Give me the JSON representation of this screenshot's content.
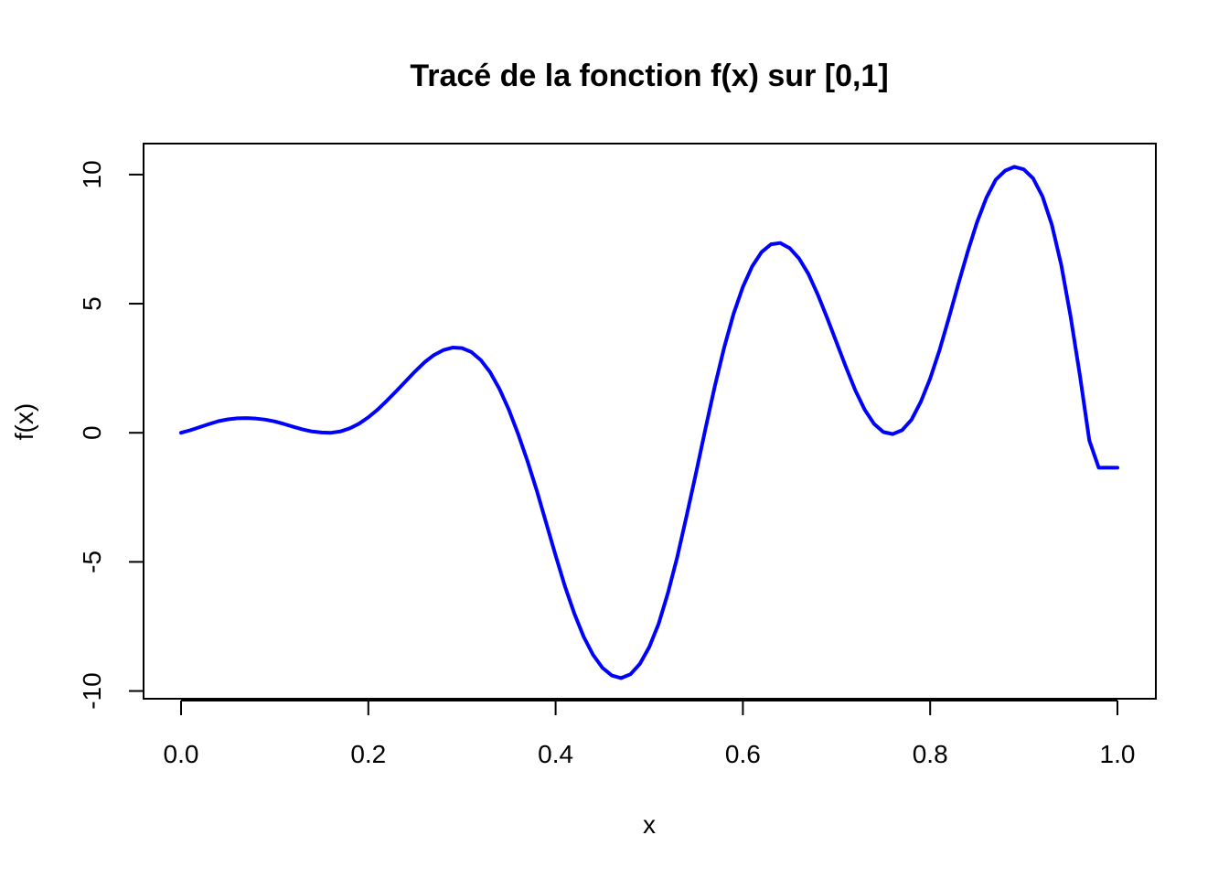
{
  "chart_data": {
    "type": "line",
    "title": "Tracé de la fonction f(x) sur [0,1]",
    "xlabel": "x",
    "ylabel": "f(x)",
    "xlim": [
      0,
      1
    ],
    "ylim": [
      -10.3,
      11.2
    ],
    "x_ticks": [
      0.0,
      0.2,
      0.4,
      0.6,
      0.8,
      1.0
    ],
    "x_tick_labels": [
      "0.0",
      "0.2",
      "0.4",
      "0.6",
      "0.8",
      "1.0"
    ],
    "y_ticks": [
      -10,
      -5,
      0,
      5,
      10
    ],
    "y_tick_labels": [
      "-10",
      "-5",
      "0",
      "5",
      "10"
    ],
    "grid": false,
    "legend": "none",
    "line_color": "#0000ff",
    "series": [
      {
        "x": [
          0.0,
          0.01,
          0.02,
          0.03,
          0.04,
          0.05,
          0.06,
          0.07,
          0.08,
          0.09,
          0.1,
          0.11,
          0.12,
          0.13,
          0.14,
          0.15,
          0.16,
          0.17,
          0.18,
          0.19,
          0.2,
          0.21,
          0.22,
          0.23,
          0.24,
          0.25,
          0.26,
          0.27,
          0.28,
          0.29,
          0.3,
          0.31,
          0.32,
          0.33,
          0.34,
          0.35,
          0.36,
          0.37,
          0.38,
          0.39,
          0.4,
          0.41,
          0.42,
          0.43,
          0.44,
          0.45,
          0.46,
          0.47,
          0.48,
          0.49,
          0.5,
          0.51,
          0.52,
          0.53,
          0.54,
          0.55,
          0.56,
          0.57,
          0.58,
          0.59,
          0.6,
          0.61,
          0.62,
          0.63,
          0.64,
          0.65,
          0.66,
          0.67,
          0.68,
          0.69,
          0.7,
          0.71,
          0.72,
          0.73,
          0.74,
          0.75,
          0.76,
          0.77,
          0.78,
          0.79,
          0.8,
          0.81,
          0.82,
          0.83,
          0.84,
          0.85,
          0.86,
          0.87,
          0.88,
          0.89,
          0.9,
          0.91,
          0.92,
          0.93,
          0.94,
          0.95,
          0.96,
          0.97,
          0.98,
          0.99,
          1.0
        ],
        "y": [
          0.0,
          0.1,
          0.22,
          0.34,
          0.45,
          0.52,
          0.56,
          0.57,
          0.55,
          0.51,
          0.44,
          0.34,
          0.23,
          0.13,
          0.05,
          0.01,
          0.0,
          0.05,
          0.17,
          0.35,
          0.6,
          0.9,
          1.25,
          1.62,
          2.0,
          2.38,
          2.73,
          3.01,
          3.2,
          3.3,
          3.28,
          3.13,
          2.82,
          2.35,
          1.7,
          0.9,
          -0.05,
          -1.1,
          -2.25,
          -3.5,
          -4.75,
          -5.95,
          -7.0,
          -7.9,
          -8.6,
          -9.1,
          -9.4,
          -9.5,
          -9.35,
          -8.95,
          -8.3,
          -7.4,
          -6.2,
          -4.8,
          -3.2,
          -1.55,
          0.15,
          1.8,
          3.3,
          4.6,
          5.65,
          6.45,
          7.0,
          7.3,
          7.35,
          7.15,
          6.75,
          6.15,
          5.35,
          4.45,
          3.5,
          2.55,
          1.65,
          0.9,
          0.35,
          0.03,
          -0.05,
          0.1,
          0.5,
          1.2,
          2.1,
          3.2,
          4.45,
          5.75,
          7.0,
          8.15,
          9.1,
          9.8,
          10.15,
          10.3,
          10.2,
          9.85,
          9.15,
          8.05,
          6.5,
          4.5,
          2.2,
          -0.3,
          -1.35,
          -1.35,
          -1.35
        ]
      }
    ]
  }
}
